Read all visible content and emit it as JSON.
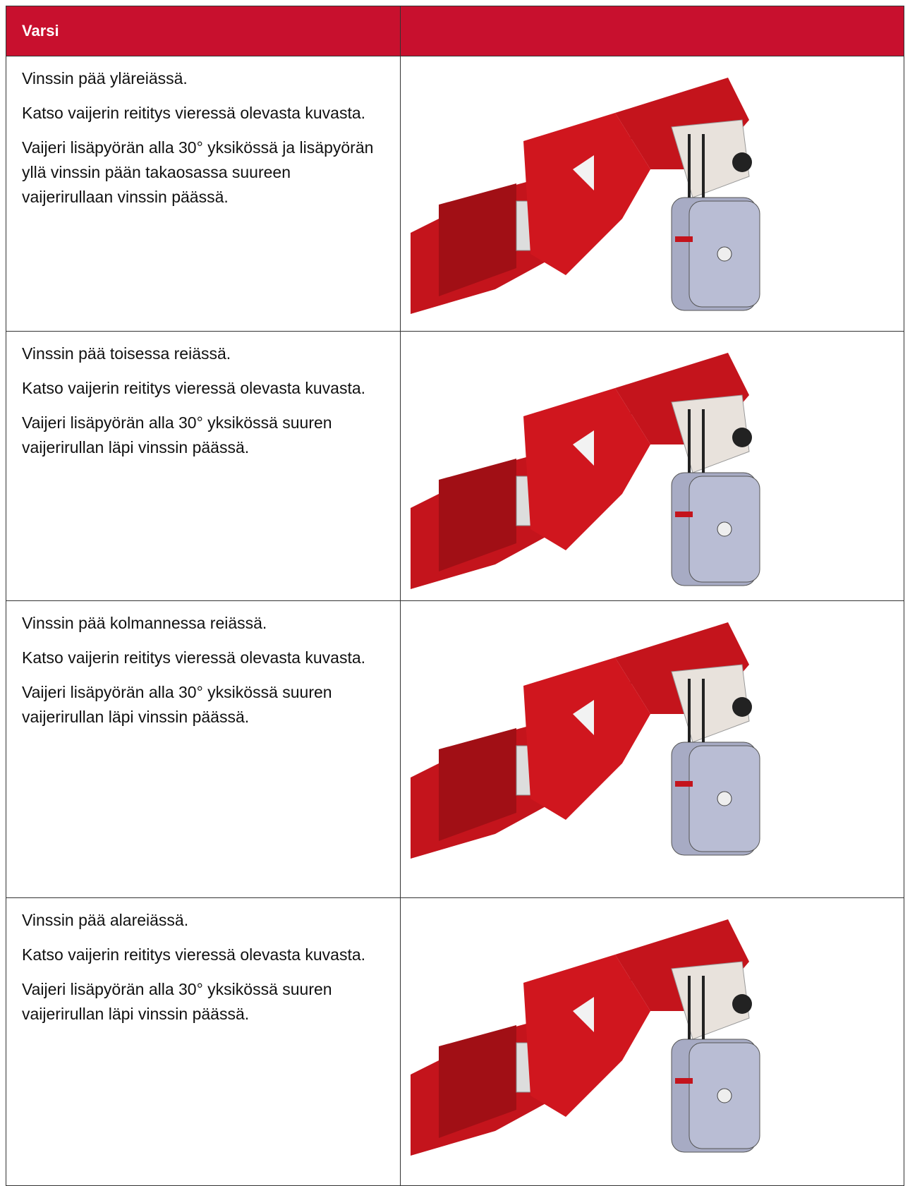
{
  "header": {
    "title": "Varsi"
  },
  "rows": [
    {
      "paragraphs": [
        "Vinssin pää yläreiässä.",
        "Katso vaijerin reititys vieressä olevasta kuvasta.",
        "Vaijeri lisäpyörän alla 30° yksikössä ja lisäpyörän yllä vinssin pään takaosassa suureen vaijerirullaan vinssin päässä."
      ]
    },
    {
      "paragraphs": [
        "Vinssin pää toisessa reiässä.",
        "Katso vaijerin reititys vieressä olevasta kuvasta.",
        "Vaijeri lisäpyörän alla 30° yksikössä suuren vaijerirullan läpi vinssin päässä."
      ]
    },
    {
      "paragraphs": [
        "Vinssin pää kolmannessa reiässä.",
        "Katso vaijerin reititys vieressä olevasta kuvasta.",
        "Vaijeri lisäpyörän alla 30° yksikössä suuren vaijerirullan läpi vinssin päässä."
      ]
    },
    {
      "paragraphs": [
        "Vinssin pää alareiässä.",
        "Katso vaijerin reititys vieressä olevasta kuvasta.",
        "Vaijeri lisäpyörän alla 30° yksikössä suuren vaijerirullan läpi vinssin päässä."
      ]
    }
  ]
}
